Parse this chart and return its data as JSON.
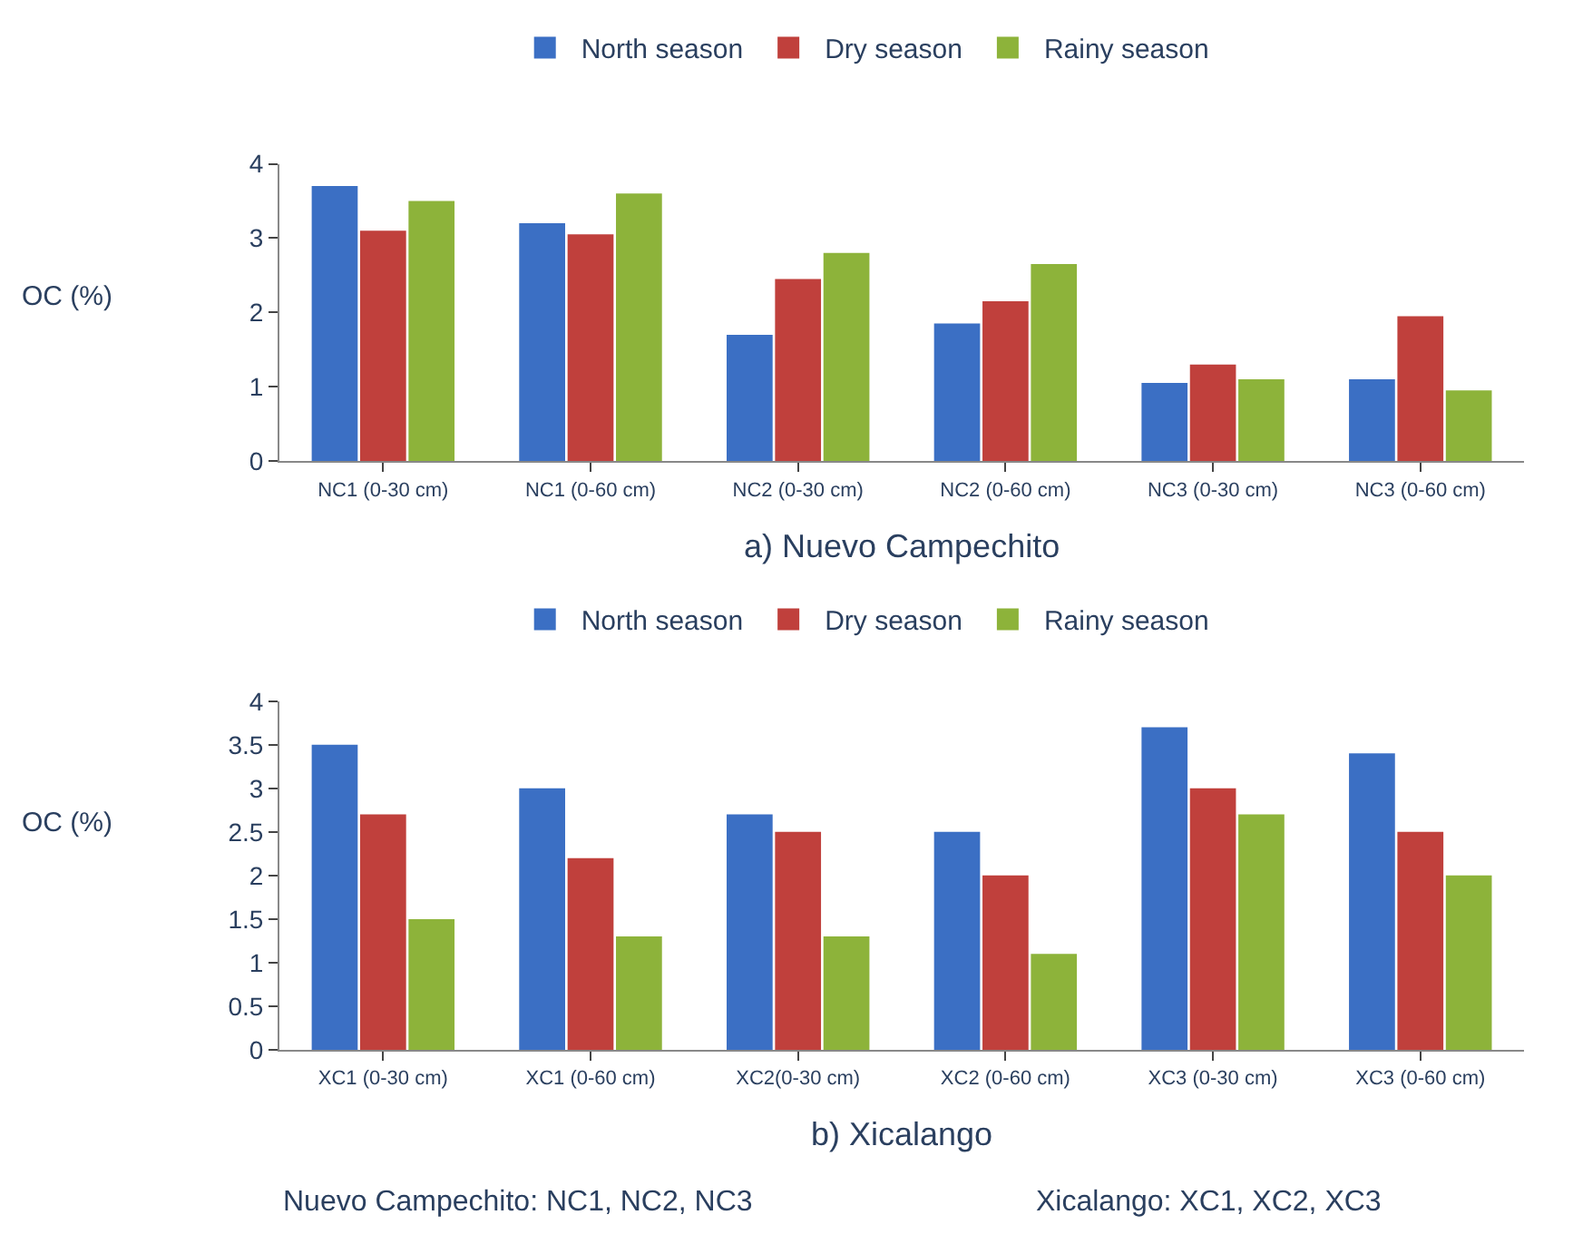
{
  "chart_data": [
    {
      "type": "bar",
      "title": "a) Nuevo Campechito",
      "ylabel": "OC (%)",
      "categories": [
        "NC1 (0-30 cm)",
        "NC1 (0-60 cm)",
        "NC2 (0-30 cm)",
        "NC2 (0-60 cm)",
        "NC3 (0-30 cm)",
        "NC3 (0-60 cm)"
      ],
      "series": [
        {
          "name": "North season",
          "color": "#3b6fc4",
          "values": [
            3.7,
            3.2,
            1.7,
            1.85,
            1.05,
            1.1
          ]
        },
        {
          "name": "Dry season",
          "color": "#c0403c",
          "values": [
            3.1,
            3.05,
            2.45,
            2.15,
            1.3,
            1.95
          ]
        },
        {
          "name": "Rainy season",
          "color": "#8db33a",
          "values": [
            3.5,
            3.6,
            2.8,
            2.65,
            1.1,
            0.95
          ]
        }
      ],
      "ylim": [
        0,
        4
      ],
      "yticks": [
        0,
        1,
        2,
        3,
        4
      ],
      "legend": "top"
    },
    {
      "type": "bar",
      "title": "b) Xicalango",
      "ylabel": "OC (%)",
      "categories": [
        "XC1 (0-30 cm)",
        "XC1 (0-60 cm)",
        "XC2(0-30 cm)",
        "XC2 (0-60 cm)",
        "XC3 (0-30 cm)",
        "XC3 (0-60 cm)"
      ],
      "series": [
        {
          "name": "North season",
          "color": "#3b6fc4",
          "values": [
            3.5,
            3.0,
            2.7,
            2.5,
            3.7,
            3.4
          ]
        },
        {
          "name": "Dry season",
          "color": "#c0403c",
          "values": [
            2.7,
            2.2,
            2.5,
            2.0,
            3.0,
            2.5
          ]
        },
        {
          "name": "Rainy season",
          "color": "#8db33a",
          "values": [
            1.5,
            1.3,
            1.3,
            1.1,
            2.7,
            2.0
          ]
        }
      ],
      "ylim": [
        0,
        4
      ],
      "yticks": [
        0,
        0.5,
        1,
        1.5,
        2,
        2.5,
        3,
        3.5,
        4
      ],
      "legend": "top",
      "annotations": [
        "Nuevo Campechito: NC1, NC2, NC3",
        "Xicalango: XC1, XC2, XC3"
      ]
    }
  ]
}
